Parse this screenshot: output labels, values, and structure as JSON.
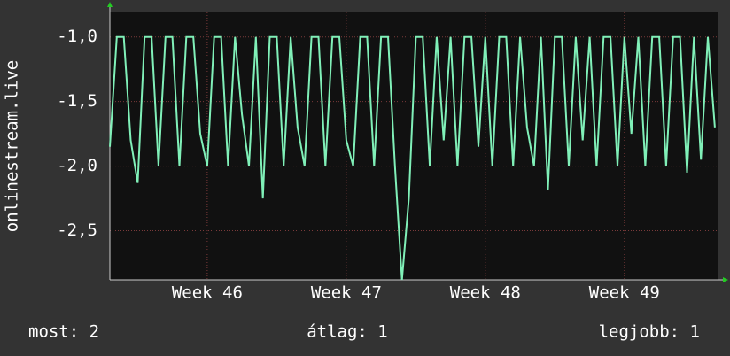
{
  "chart_data": {
    "type": "line",
    "y_label": "onlinestream.live",
    "x": [
      45.3,
      45.35,
      45.4,
      45.45,
      45.5,
      45.55,
      45.6,
      45.65,
      45.7,
      45.75,
      45.8,
      45.85,
      45.9,
      45.95,
      46.0,
      46.05,
      46.1,
      46.15,
      46.2,
      46.25,
      46.3,
      46.35,
      46.4,
      46.45,
      46.5,
      46.55,
      46.6,
      46.65,
      46.7,
      46.75,
      46.8,
      46.85,
      46.9,
      46.95,
      47.0,
      47.05,
      47.1,
      47.15,
      47.2,
      47.25,
      47.3,
      47.35,
      47.4,
      47.45,
      47.5,
      47.55,
      47.6,
      47.65,
      47.7,
      47.75,
      47.8,
      47.85,
      47.9,
      47.95,
      48.0,
      48.05,
      48.1,
      48.15,
      48.2,
      48.25,
      48.3,
      48.35,
      48.4,
      48.45,
      48.5,
      48.55,
      48.6,
      48.65,
      48.7,
      48.75,
      48.8,
      48.85,
      48.9,
      48.95,
      49.0,
      49.05,
      49.1,
      49.15,
      49.2,
      49.25,
      49.3,
      49.35,
      49.4,
      49.45,
      49.5,
      49.55,
      49.6,
      49.65
    ],
    "series": [
      {
        "color": "#80f0b8",
        "values": [
          -1.85,
          -1.0,
          -1.0,
          -1.8,
          -2.13,
          -1.0,
          -1.0,
          -2.0,
          -1.0,
          -1.0,
          -2.0,
          -1.0,
          -1.0,
          -1.75,
          -2.0,
          -1.0,
          -1.0,
          -2.0,
          -1.0,
          -1.6,
          -2.0,
          -1.0,
          -2.25,
          -1.0,
          -1.0,
          -2.0,
          -1.0,
          -1.7,
          -2.0,
          -1.0,
          -1.0,
          -2.0,
          -1.0,
          -1.0,
          -1.8,
          -2.0,
          -1.0,
          -1.0,
          -2.0,
          -1.0,
          -1.0,
          -2.0,
          -2.88,
          -2.25,
          -1.0,
          -1.0,
          -2.0,
          -1.0,
          -1.8,
          -1.0,
          -2.0,
          -1.0,
          -1.0,
          -1.85,
          -1.0,
          -2.0,
          -1.0,
          -1.0,
          -2.0,
          -1.0,
          -1.7,
          -2.0,
          -1.0,
          -2.18,
          -1.0,
          -1.0,
          -2.0,
          -1.0,
          -1.8,
          -1.0,
          -2.0,
          -1.0,
          -1.0,
          -2.0,
          -1.0,
          -1.75,
          -1.0,
          -2.0,
          -1.0,
          -1.0,
          -2.0,
          -1.0,
          -1.0,
          -2.05,
          -1.0,
          -1.95,
          -1.0,
          -1.7
        ]
      }
    ],
    "xlim": [
      45.3,
      49.67
    ],
    "xticks": [
      {
        "value": 46,
        "label": "Week 46"
      },
      {
        "value": 47,
        "label": "Week 47"
      },
      {
        "value": 48,
        "label": "Week 48"
      },
      {
        "value": 49,
        "label": "Week 49"
      }
    ],
    "ylim": [
      -2.88,
      -0.81
    ],
    "yticks": [
      {
        "value": -1,
        "label": "-1,0"
      },
      {
        "value": -1.5,
        "label": "-1,5"
      },
      {
        "value": -2,
        "label": "-2,0"
      },
      {
        "value": -2.5,
        "label": "-2,5"
      }
    ],
    "grid": true,
    "stats": [
      "most: 2",
      "átlag: 1",
      "legjobb: 1"
    ]
  }
}
